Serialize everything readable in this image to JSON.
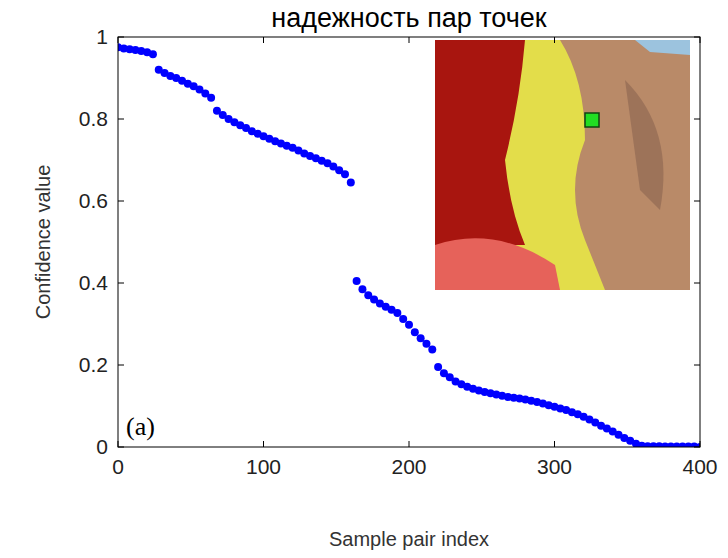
{
  "chart_data": {
    "type": "scatter",
    "title": "надежность пар точек",
    "x_label": "Sample pair index",
    "y_label": "Confidence value",
    "annotation": "(a)",
    "color": "#0000ff",
    "marker": "circle",
    "grid": false,
    "xlim": [
      0,
      400
    ],
    "ylim": [
      0,
      1
    ],
    "xticks": [
      0,
      100,
      200,
      300,
      400
    ],
    "yticks": [
      0,
      0.2,
      0.4,
      0.6,
      0.8,
      1
    ],
    "x": [
      0,
      4,
      8,
      12,
      16,
      20,
      24,
      28,
      32,
      36,
      40,
      44,
      48,
      52,
      56,
      60,
      64,
      68,
      72,
      76,
      80,
      84,
      88,
      92,
      96,
      100,
      104,
      108,
      112,
      116,
      120,
      124,
      128,
      132,
      136,
      140,
      144,
      148,
      152,
      156,
      160,
      164,
      168,
      172,
      176,
      180,
      184,
      188,
      192,
      196,
      200,
      204,
      208,
      212,
      216,
      220,
      224,
      228,
      232,
      236,
      240,
      244,
      248,
      252,
      256,
      260,
      264,
      268,
      272,
      276,
      280,
      284,
      288,
      292,
      296,
      300,
      304,
      308,
      312,
      316,
      320,
      324,
      328,
      332,
      336,
      340,
      344,
      348,
      352,
      356,
      360,
      364,
      368,
      372,
      376,
      380,
      384,
      388,
      392,
      396,
      400
    ],
    "values": [
      0.975,
      0.972,
      0.97,
      0.968,
      0.966,
      0.963,
      0.958,
      0.92,
      0.912,
      0.905,
      0.9,
      0.893,
      0.886,
      0.88,
      0.872,
      0.862,
      0.852,
      0.82,
      0.81,
      0.8,
      0.792,
      0.785,
      0.778,
      0.77,
      0.764,
      0.758,
      0.752,
      0.746,
      0.74,
      0.735,
      0.73,
      0.723,
      0.716,
      0.71,
      0.704,
      0.698,
      0.692,
      0.684,
      0.675,
      0.665,
      0.645,
      0.405,
      0.385,
      0.37,
      0.36,
      0.35,
      0.342,
      0.335,
      0.327,
      0.312,
      0.298,
      0.28,
      0.265,
      0.252,
      0.238,
      0.195,
      0.18,
      0.17,
      0.16,
      0.153,
      0.147,
      0.142,
      0.138,
      0.134,
      0.131,
      0.128,
      0.125,
      0.122,
      0.12,
      0.118,
      0.116,
      0.113,
      0.11,
      0.106,
      0.102,
      0.098,
      0.094,
      0.09,
      0.085,
      0.08,
      0.074,
      0.067,
      0.06,
      0.052,
      0.045,
      0.038,
      0.03,
      0.022,
      0.015,
      0.008,
      0.003,
      0.002,
      0.002,
      0.002,
      0.001,
      0.001,
      0.001,
      0.001,
      0.001,
      0.001,
      0.0
    ]
  }
}
